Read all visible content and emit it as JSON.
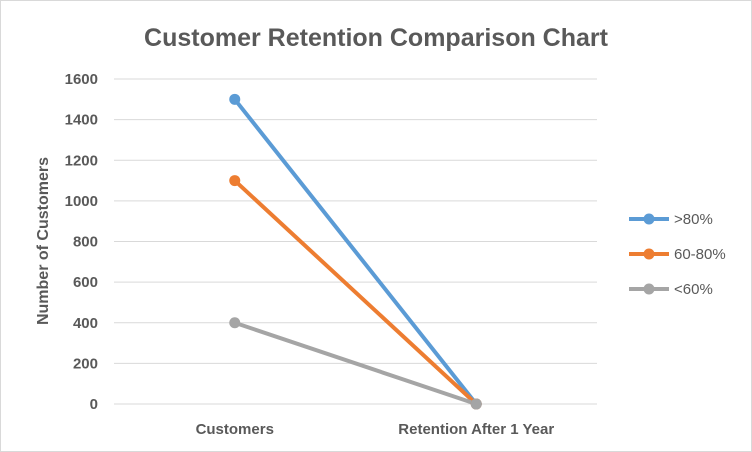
{
  "chart_data": {
    "type": "line",
    "title": "Customer Retention Comparison Chart",
    "xlabel": "",
    "ylabel": "Number of Customers",
    "categories": [
      "Customers",
      "Retention After 1 Year"
    ],
    "ylim": [
      0,
      1600
    ],
    "yticks": [
      0,
      200,
      400,
      600,
      800,
      1000,
      1200,
      1400,
      1600
    ],
    "grid": true,
    "legend_position": "right",
    "series": [
      {
        "name": ">80%",
        "values": [
          1500,
          0
        ],
        "color": "#5b9bd5"
      },
      {
        "name": "60-80%",
        "values": [
          1100,
          0
        ],
        "color": "#ed7d31"
      },
      {
        "name": "<60%",
        "values": [
          400,
          0
        ],
        "color": "#a5a5a5"
      }
    ]
  }
}
